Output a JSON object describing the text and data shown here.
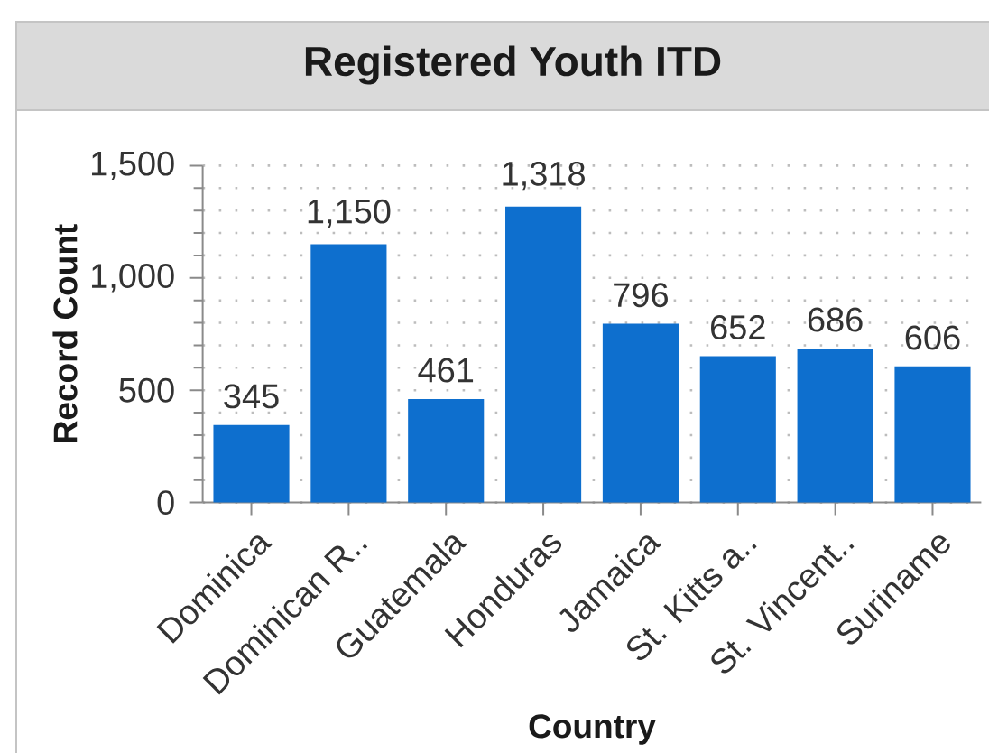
{
  "chart_data": {
    "type": "bar",
    "title": "Registered Youth ITD",
    "xlabel": "Country",
    "ylabel": "Record Count",
    "categories": [
      "Dominica",
      "Dominican R..",
      "Guatemala",
      "Honduras",
      "Jamaica",
      "St. Kitts a..",
      "St. Vincent..",
      "Suriname"
    ],
    "values": [
      345,
      1150,
      461,
      1318,
      796,
      652,
      686,
      606
    ],
    "value_labels": [
      "345",
      "1,150",
      "461",
      "1,318",
      "796",
      "652",
      "686",
      "606"
    ],
    "color": "#0e6fce",
    "ylim": [
      0,
      1500
    ],
    "yticks": [
      0,
      {
        "value": 100,
        "label": null
      },
      {
        "value": 200,
        "label": null
      },
      {
        "value": 300,
        "label": null
      },
      {
        "value": 400,
        "label": null
      },
      500,
      {
        "value": 600,
        "label": null
      },
      {
        "value": 700,
        "label": null
      },
      {
        "value": 800,
        "label": null
      },
      {
        "value": 900,
        "label": null
      },
      {
        "value": 1000,
        "label": "1,000"
      },
      {
        "value": 1100,
        "label": null
      },
      {
        "value": 1200,
        "label": null
      },
      {
        "value": 1300,
        "label": null
      },
      {
        "value": 1400,
        "label": null
      },
      {
        "value": 1500,
        "label": "1,500"
      }
    ],
    "grid": "y"
  }
}
